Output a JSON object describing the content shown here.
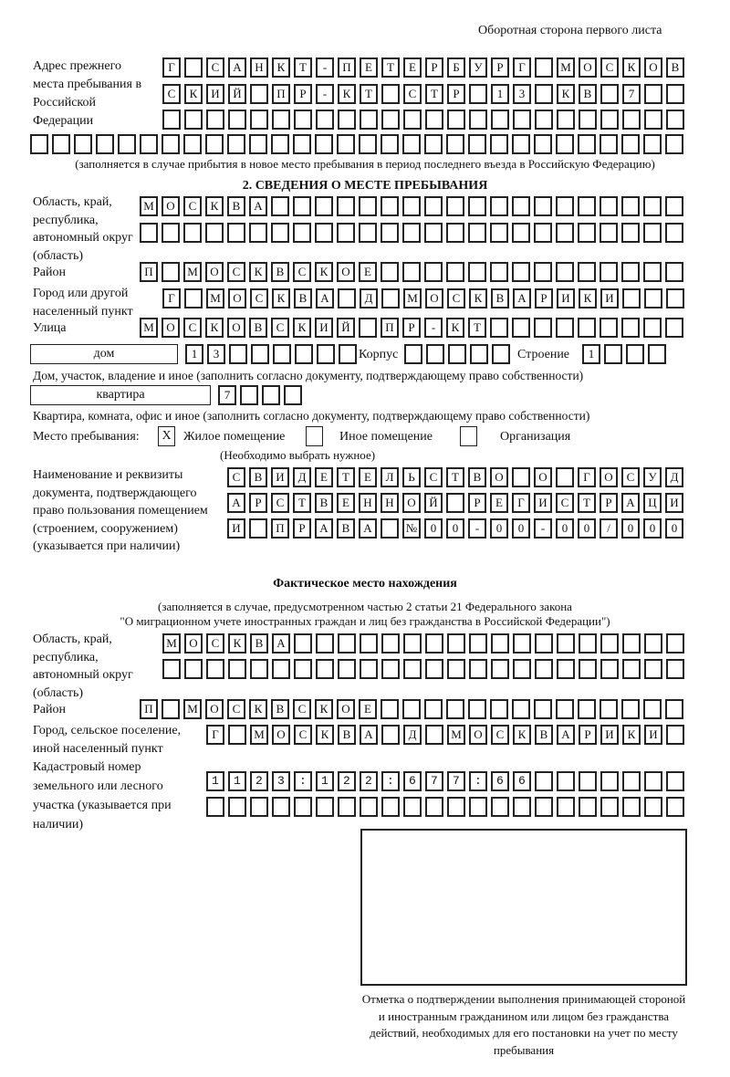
{
  "header": "Оборотная сторона первого листа",
  "previous_address": {
    "label": "Адрес прежнего места пребывания в Российской Федерации",
    "rows": [
      "Г САНКТ-ПЕТЕРБУРГ МОСКОВ",
      "СКИЙ ПР-КТ СТР 13 КВ 7",
      "",
      ""
    ],
    "note": "(заполняется в случае прибытия в новое место пребывания в период последнего въезда в Российскую Федерацию)"
  },
  "section2": {
    "title": "2. СВЕДЕНИЯ О МЕСТЕ ПРЕБЫВАНИЯ",
    "region_label": "Область, край, республика, автономный округ (область)",
    "region_rows": [
      "МОСКВА",
      ""
    ],
    "district_label": "Район",
    "district": "П МОСКВСКОЕ",
    "city_label": "Город или другой населенный пункт",
    "city": "Г МОСКВА Д МОСКВАРИКИ",
    "street_label": "Улица",
    "street": "МОСКОВСКИЙ ПР-КТ",
    "house_type": "дом",
    "house_number": "13",
    "korpus_label": "Корпус",
    "korpus": "",
    "building_label": "Строение",
    "building": "1",
    "house_note": "Дом, участок, владение и иное (заполнить согласно документу, подтверждающему право собственности)",
    "flat_type": "квартира",
    "flat_number": "7",
    "flat_note": "Квартира, комната, офис и иное (заполнить согласно документу, подтверждающему право собственности)",
    "place_label": "Место пребывания:",
    "place_options": [
      {
        "label": "Жилое помещение",
        "mark": "X"
      },
      {
        "label": "Иное помещение",
        "mark": ""
      },
      {
        "label": "Организация",
        "mark": ""
      }
    ],
    "place_hint": "(Необходимо выбрать нужное)",
    "doc_label": "Наименование и реквизиты документа, подтверждающего право пользования помещением (строением, сооружением) (указывается при наличии)",
    "doc_rows": [
      "СВИДЕТЕЛЬСТВО О ГОСУД",
      "АРСТВЕННОЙ РЕГИСТРАЦИ",
      "И ПРАВА №00-00-00/000"
    ]
  },
  "actual": {
    "title": "Фактическое место нахождения",
    "note1": "(заполняется в случае, предусмотренном частью 2 статьи 21 Федерального закона",
    "note2": "\"О миграционном учете иностранных граждан и лиц без гражданства в Российской Федерации\")",
    "region_label": "Область, край, республика, автономный округ (область)",
    "region_rows": [
      "МОСКВА",
      ""
    ],
    "district_label": "Район",
    "district": "П МОСКВСКОЕ",
    "city_label": "Город, сельское поселение, иной населенный пункт",
    "city": "Г МОСКВА Д МОСКВАРИКИ",
    "cadastral_label": "Кадастровый номер земельного или лесного участка (указывается при наличии)",
    "cadastral_rows": [
      "1123:122:677:66",
      ""
    ]
  },
  "stamp_caption": "Отметка о подтверждении выполнения принимающей стороной и иностранным гражданином или лицом без гражданства действий, необходимых для его постановки на учет по месту пребывания"
}
